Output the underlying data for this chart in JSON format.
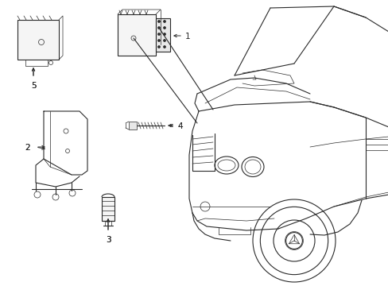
{
  "bg_color": "#ffffff",
  "line_color": "#2a2a2a",
  "lw": 0.8,
  "thin_lw": 0.5,
  "label_fontsize": 7.5,
  "label_color": "#2a2a2a",
  "fig_width": 4.89,
  "fig_height": 3.6,
  "dpi": 100
}
